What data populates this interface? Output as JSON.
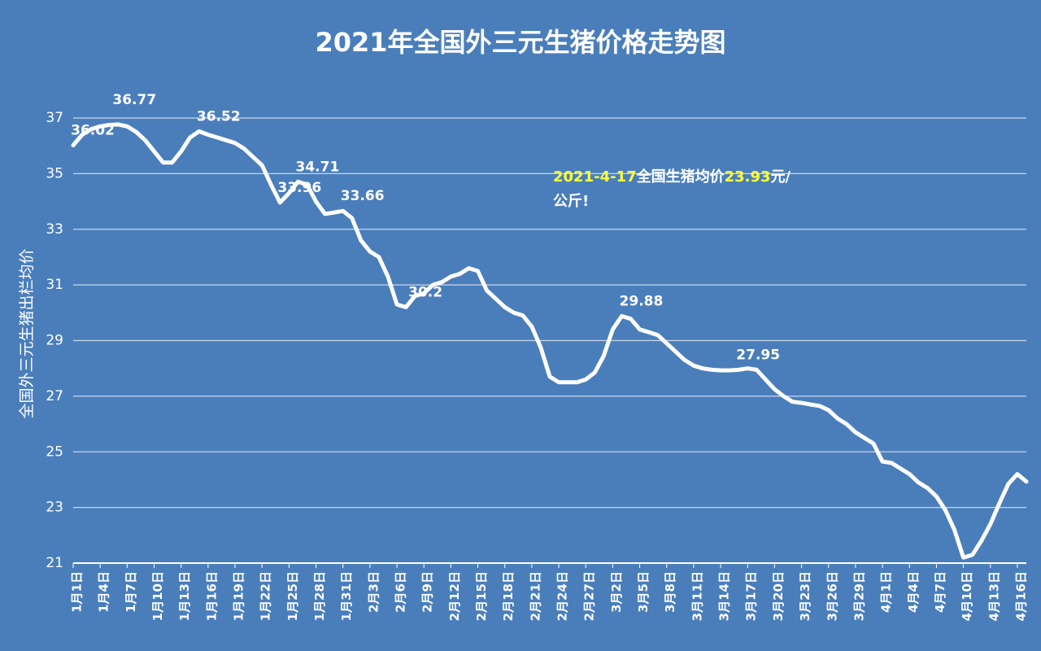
{
  "chart_data": {
    "type": "line",
    "title": "2021年全国外三元生猪价格走势图",
    "y_label": "全国外三元生猪出栏均价",
    "annotation": [
      [
        {
          "text": "2021-4-17",
          "color": "#ffff33"
        },
        {
          "text": "全国生猪均价",
          "color": "#ffffff"
        },
        {
          "text": "23.93",
          "color": "#ffff33"
        },
        {
          "text": "元/",
          "color": "#ffffff"
        }
      ],
      [
        {
          "text": "公斤!",
          "color": "#ffffff"
        }
      ]
    ],
    "color": "#ffffff",
    "ylim": [
      21,
      37
    ],
    "yticks": [
      21,
      23,
      25,
      27,
      29,
      31,
      33,
      35,
      37
    ],
    "grid": true,
    "categories": [
      "1月1日",
      null,
      null,
      "1月4日",
      null,
      null,
      "1月7日",
      null,
      null,
      "1月10日",
      null,
      null,
      "1月13日",
      null,
      null,
      "1月16日",
      null,
      null,
      "1月19日",
      null,
      null,
      "1月22日",
      null,
      null,
      "1月25日",
      null,
      null,
      "1月28日",
      null,
      null,
      "1月31日",
      null,
      null,
      "2月3日",
      null,
      null,
      "2月6日",
      null,
      null,
      "2月9日",
      null,
      null,
      "2月12日",
      null,
      null,
      "2月15日",
      null,
      null,
      "2月18日",
      null,
      null,
      "2月21日",
      null,
      null,
      "2月24日",
      null,
      null,
      "2月27日",
      null,
      null,
      "3月2日",
      null,
      null,
      "3月5日",
      null,
      null,
      "3月8日",
      null,
      null,
      "3月11日",
      null,
      null,
      "3月14日",
      null,
      null,
      "3月17日",
      null,
      null,
      "3月20日",
      null,
      null,
      "3月23日",
      null,
      null,
      "3月26日",
      null,
      null,
      "3月29日",
      null,
      null,
      "4月1日",
      null,
      null,
      "4月4日",
      null,
      null,
      "4月7日",
      null,
      null,
      "4月10日",
      null,
      null,
      "4月13日",
      null,
      null,
      "4月16日",
      null
    ],
    "values": [
      36.02,
      36.4,
      36.6,
      36.7,
      36.75,
      36.77,
      36.7,
      36.5,
      36.2,
      35.8,
      35.4,
      35.4,
      35.8,
      36.3,
      36.52,
      36.4,
      36.3,
      36.2,
      36.1,
      35.9,
      35.6,
      35.3,
      34.6,
      33.96,
      34.3,
      34.71,
      34.6,
      34.0,
      33.55,
      33.6,
      33.66,
      33.4,
      32.6,
      32.2,
      32.0,
      31.3,
      30.3,
      30.2,
      30.6,
      30.7,
      31.0,
      31.1,
      31.3,
      31.4,
      31.6,
      31.5,
      30.8,
      30.5,
      30.2,
      30.0,
      29.9,
      29.5,
      28.75,
      27.7,
      27.5,
      27.5,
      27.5,
      27.6,
      27.85,
      28.45,
      29.4,
      29.88,
      29.78,
      29.4,
      29.3,
      29.2,
      28.9,
      28.6,
      28.3,
      28.1,
      28.0,
      27.95,
      27.93,
      27.93,
      27.95,
      28.0,
      27.95,
      27.6,
      27.25,
      27.0,
      26.8,
      26.76,
      26.7,
      26.65,
      26.5,
      26.2,
      26.0,
      25.7,
      25.5,
      25.3,
      24.65,
      24.6,
      24.4,
      24.2,
      23.9,
      23.7,
      23.4,
      22.9,
      22.2,
      21.2,
      21.3,
      21.8,
      22.4,
      23.15,
      23.85,
      24.2,
      23.93
    ],
    "value_labels": [
      "36.02",
      null,
      null,
      null,
      null,
      "36.77",
      null,
      null,
      null,
      null,
      null,
      null,
      null,
      null,
      "36.52",
      null,
      null,
      null,
      null,
      null,
      null,
      null,
      null,
      "33.96",
      null,
      "34.71",
      null,
      null,
      null,
      null,
      "33.66",
      null,
      null,
      null,
      null,
      null,
      null,
      "30.2",
      null,
      null,
      null,
      null,
      null,
      null,
      null,
      null,
      null,
      null,
      null,
      null,
      null,
      null,
      null,
      null,
      null,
      null,
      null,
      null,
      null,
      null,
      null,
      "29.88",
      null,
      null,
      null,
      null,
      null,
      null,
      null,
      null,
      null,
      null,
      null,
      null,
      "27.95",
      null,
      null,
      null,
      null,
      null,
      null,
      null,
      null,
      null,
      null,
      null,
      null,
      null,
      null,
      null,
      null,
      null,
      null,
      null,
      null,
      null,
      null,
      null,
      null,
      null,
      null,
      null,
      null,
      null,
      null,
      null,
      null
    ]
  }
}
